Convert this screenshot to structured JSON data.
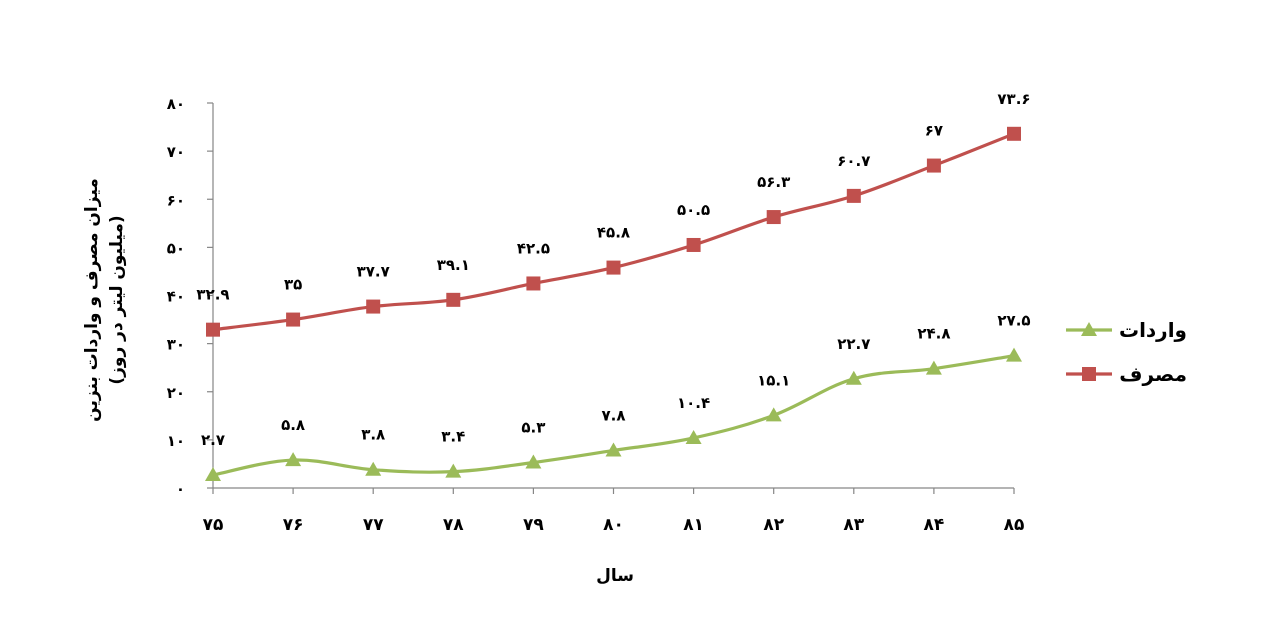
{
  "chart_data": {
    "type": "line",
    "x": [
      "۷۵",
      "۷۶",
      "۷۷",
      "۷۸",
      "۷۹",
      "۸۰",
      "۸۱",
      "۸۲",
      "۸۳",
      "۸۴",
      "۸۵"
    ],
    "xlabel": "سال",
    "ylabel": "میزان مصرف و واردات بنزین",
    "ylabel_unit": "(میلیون لیتر در روز)",
    "ylim": [
      0,
      80
    ],
    "yticks": [
      0,
      10,
      20,
      30,
      40,
      50,
      60,
      70,
      80
    ],
    "ytick_labels": [
      "۰",
      "۱۰",
      "۲۰",
      "۳۰",
      "۴۰",
      "۵۰",
      "۶۰",
      "۷۰",
      "۸۰"
    ],
    "grid": false,
    "legend_position": "right",
    "series": [
      {
        "name": "مصرف",
        "color": "#c0504d",
        "marker": "square",
        "values": [
          32.9,
          35,
          37.7,
          39.1,
          42.5,
          45.8,
          50.5,
          56.3,
          60.7,
          67,
          73.6
        ],
        "labels": [
          "۳۲.۹",
          "۳۵",
          "۳۷.۷",
          "۳۹.۱",
          "۴۲.۵",
          "۴۵.۸",
          "۵۰.۵",
          "۵۶.۳",
          "۶۰.۷",
          "۶۷",
          "۷۳.۶"
        ]
      },
      {
        "name": "واردات",
        "color": "#9bbb59",
        "marker": "triangle",
        "values": [
          2.7,
          5.8,
          3.8,
          3.4,
          5.3,
          7.8,
          10.4,
          15.1,
          22.7,
          24.8,
          27.5
        ],
        "labels": [
          "۲.۷",
          "۵.۸",
          "۳.۸",
          "۳.۴",
          "۵.۳",
          "۷.۸",
          "۱۰.۴",
          "۱۵.۱",
          "۲۲.۷",
          "۲۴.۸",
          "۲۷.۵"
        ]
      }
    ],
    "legend_order": [
      "واردات",
      "مصرف"
    ]
  }
}
